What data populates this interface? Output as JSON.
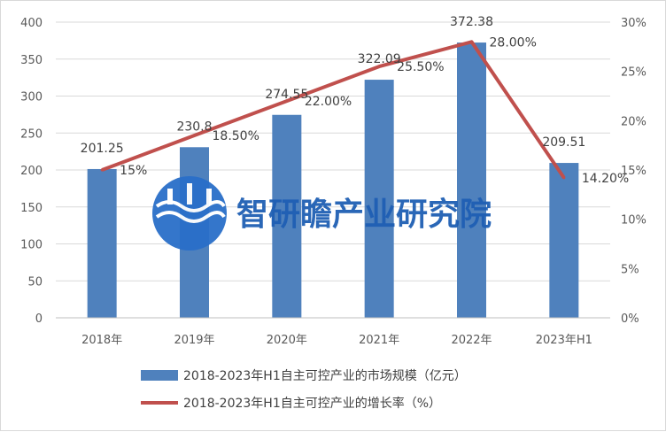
{
  "chart_data": {
    "type": "bar",
    "categories": [
      "2018年",
      "2019年",
      "2020年",
      "2021年",
      "2022年",
      "2023年H1"
    ],
    "series": [
      {
        "name": "2018-2023年H1自主可控产业的市场规模（亿元）",
        "type": "bar",
        "axis": "left",
        "color": "#4f81bd",
        "values": [
          201.25,
          230.8,
          274.55,
          322.09,
          372.38,
          209.51
        ],
        "labels": [
          "201.25",
          "230.8",
          "274.55",
          "322.09",
          "372.38",
          "209.51"
        ]
      },
      {
        "name": "2018-2023年H1自主可控产业的增长率（%）",
        "type": "line",
        "axis": "right",
        "color": "#c0504d",
        "values": [
          15,
          18.5,
          22,
          25.5,
          28,
          14.2
        ],
        "labels": [
          "15%",
          "18.50%",
          "22.00%",
          "25.50%",
          "28.00%",
          "14.20%"
        ]
      }
    ],
    "y_left": {
      "min": 0,
      "max": 400,
      "step": 50,
      "ticks": [
        "0",
        "50",
        "100",
        "150",
        "200",
        "250",
        "300",
        "350",
        "400"
      ]
    },
    "y_right": {
      "min": 0,
      "max": 30,
      "step": 5,
      "ticks": [
        "0%",
        "5%",
        "10%",
        "15%",
        "20%",
        "25%",
        "30%"
      ]
    },
    "grid": true,
    "legend_position": "bottom"
  },
  "watermark": {
    "text": "智研瞻产业研究院",
    "logo_icon": "water-wave-logo-icon"
  }
}
